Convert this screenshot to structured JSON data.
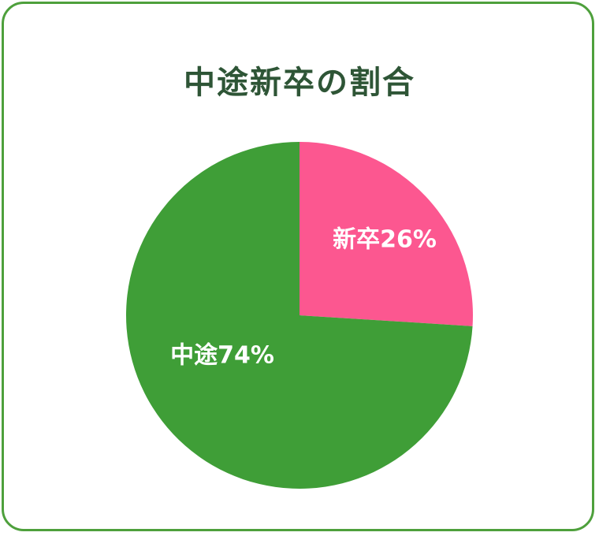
{
  "chart_data": {
    "type": "pie",
    "title": "中途新卒の割合",
    "slices": [
      {
        "label": "新卒26%",
        "name": "新卒",
        "value": 26,
        "color": "#fc5790"
      },
      {
        "label": "中途74%",
        "name": "中途",
        "value": 74,
        "color": "#3f9e37"
      }
    ],
    "start_angle": "12 o'clock",
    "direction": "clockwise",
    "legend": "none"
  }
}
